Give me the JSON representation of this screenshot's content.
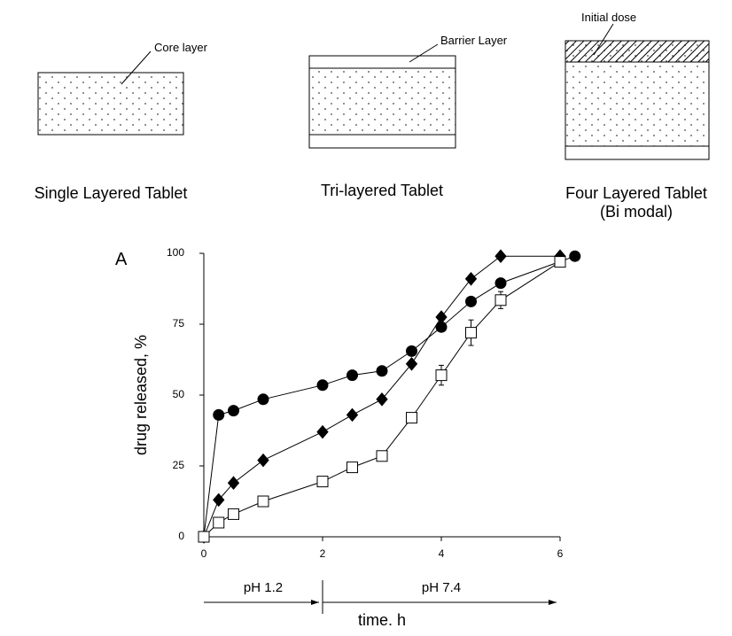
{
  "diagram": {
    "tablets": [
      {
        "label": "Single Layered Tablet",
        "annotation": "Core layer"
      },
      {
        "label": "Tri-layered Tablet",
        "annotation": "Barrier Layer"
      },
      {
        "label": "Four Layered Tablet",
        "sublabel": "(Bi modal)",
        "annotation": "Initial dose"
      }
    ]
  },
  "chart_data": {
    "type": "line",
    "panel_label": "A",
    "x_label": "time. h",
    "y_label": "drug released, %",
    "annotations": [
      "pH 1.2",
      "pH 7.4"
    ],
    "xlim": [
      0,
      6
    ],
    "xticks": [
      0,
      2,
      4,
      6
    ],
    "ylim": [
      0,
      100
    ],
    "yticks": [
      0,
      25,
      50,
      75,
      100
    ],
    "series": [
      {
        "marker": "circle",
        "filled": true,
        "color": "#000000",
        "x": [
          0,
          0.25,
          0.5,
          1,
          2,
          2.5,
          3,
          3.5,
          4,
          4.5,
          5,
          6.25
        ],
        "values": [
          0,
          43,
          44.5,
          48.5,
          53.5,
          57,
          58.5,
          65.5,
          74,
          83,
          89.5,
          99
        ]
      },
      {
        "marker": "diamond",
        "filled": true,
        "color": "#000000",
        "x": [
          0,
          0.25,
          0.5,
          1,
          2,
          2.5,
          3,
          3.5,
          4,
          4.5,
          5,
          6
        ],
        "values": [
          0,
          13,
          19,
          27,
          37,
          43,
          48.5,
          61,
          77.5,
          91,
          99,
          99
        ]
      },
      {
        "marker": "square",
        "filled": false,
        "color": "#000000",
        "x": [
          0,
          0.25,
          0.5,
          1,
          2,
          2.5,
          3,
          3.5,
          4,
          4.5,
          5,
          6
        ],
        "values": [
          0,
          5,
          8,
          12.5,
          19.5,
          24.5,
          28.5,
          42,
          57,
          72,
          83.5,
          97
        ],
        "errors": [
          null,
          null,
          null,
          null,
          null,
          null,
          null,
          null,
          3.5,
          4.5,
          3,
          null
        ]
      }
    ]
  }
}
